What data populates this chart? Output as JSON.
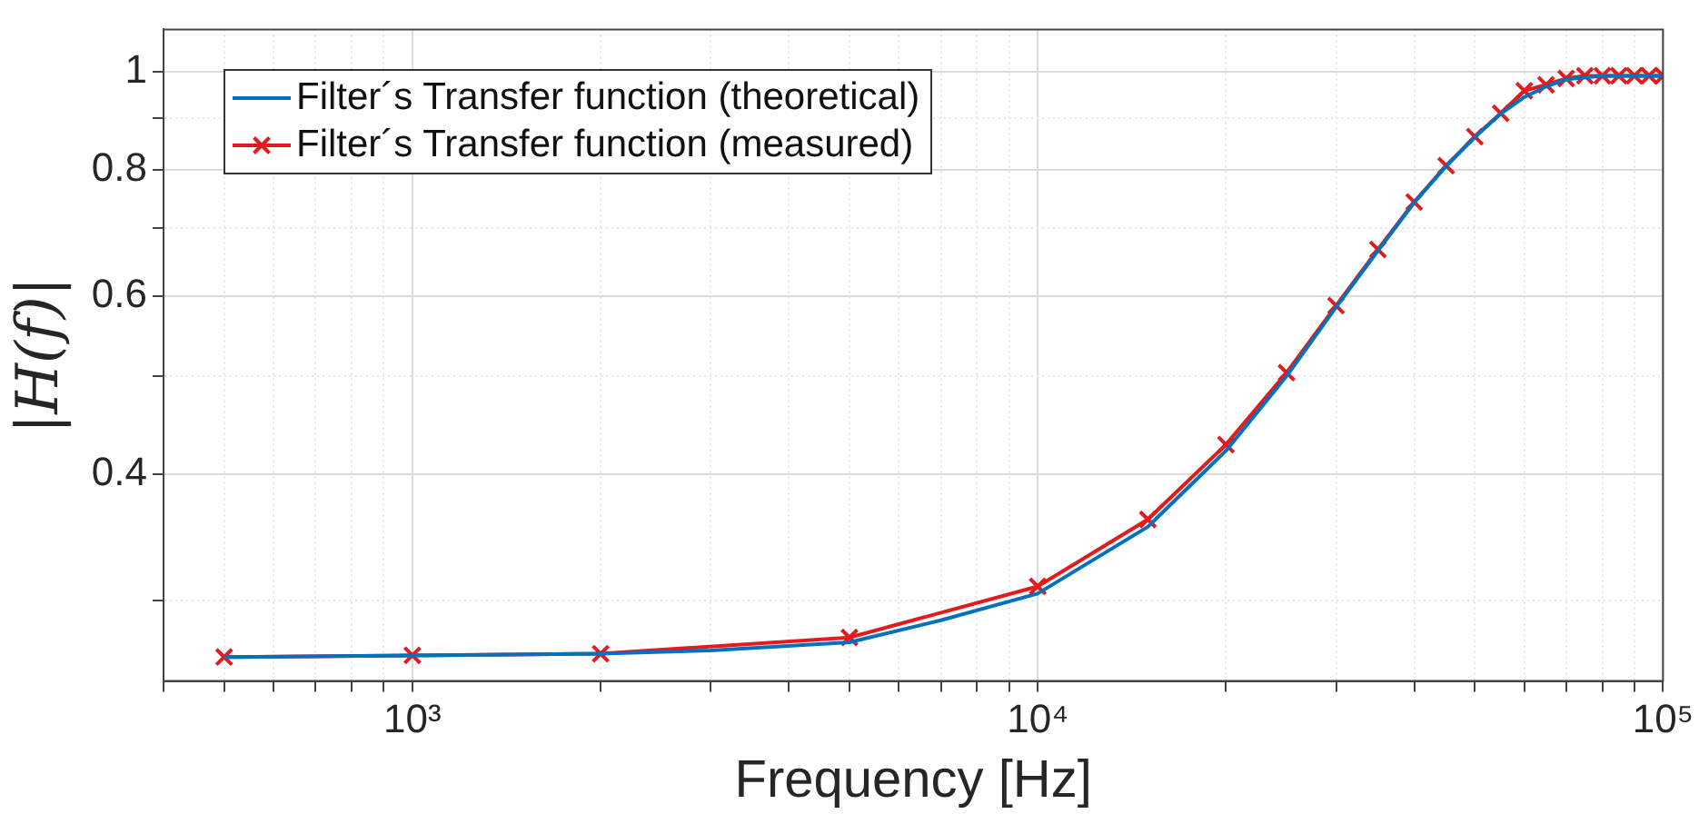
{
  "chart_data": {
    "type": "line",
    "xlabel": "Frequency [Hz]",
    "ylabel": "|H(f)|",
    "log": "xy",
    "grid": true,
    "legend": "top left",
    "xlim": [
      400,
      100000
    ],
    "ylim": [
      0.25,
      1.1
    ],
    "xticks": [
      {
        "value": 400,
        "label": null
      },
      {
        "value": 500,
        "label": null
      },
      {
        "value": 600,
        "label": null
      },
      {
        "value": 700,
        "label": null
      },
      {
        "value": 800,
        "label": null
      },
      {
        "value": 900,
        "label": null
      },
      {
        "value": 1000,
        "label": "10³"
      },
      {
        "value": 2000,
        "label": null
      },
      {
        "value": 3000,
        "label": null
      },
      {
        "value": 4000,
        "label": null
      },
      {
        "value": 5000,
        "label": null
      },
      {
        "value": 6000,
        "label": null
      },
      {
        "value": 7000,
        "label": null
      },
      {
        "value": 8000,
        "label": null
      },
      {
        "value": 9000,
        "label": null
      },
      {
        "value": 10000,
        "label": "10⁴"
      },
      {
        "value": 20000,
        "label": null
      },
      {
        "value": 30000,
        "label": null
      },
      {
        "value": 40000,
        "label": null
      },
      {
        "value": 50000,
        "label": null
      },
      {
        "value": 60000,
        "label": null
      },
      {
        "value": 70000,
        "label": null
      },
      {
        "value": 80000,
        "label": null
      },
      {
        "value": 90000,
        "label": null
      },
      {
        "value": 100000,
        "label": "10⁵"
      }
    ],
    "yticks": [
      {
        "value": 0.3,
        "label": null
      },
      0.4,
      {
        "value": 0.5,
        "label": null
      },
      0.6,
      {
        "value": 0.7,
        "label": null
      },
      0.8,
      {
        "value": 0.9,
        "label": null
      },
      1
    ],
    "series": [
      {
        "name": "Filter´s Transfer function (theoretical)",
        "color": "#0072bd",
        "marker": "none",
        "x": [
          500,
          1000,
          2000,
          3000,
          5000,
          7000,
          10000,
          15000,
          20000,
          25000,
          30000,
          35000,
          40000,
          45000,
          50000,
          55000,
          60000,
          65000,
          70000,
          80000,
          90000,
          100000
        ],
        "values": [
          0.264,
          0.265,
          0.266,
          0.268,
          0.273,
          0.287,
          0.305,
          0.355,
          0.422,
          0.5,
          0.585,
          0.665,
          0.742,
          0.806,
          0.861,
          0.908,
          0.943,
          0.966,
          0.982,
          0.99,
          0.99,
          0.99
        ]
      },
      {
        "name": "Filter´s Transfer function (measured)",
        "color": "#e41a1c",
        "marker": "cross",
        "x": [
          500,
          1000,
          2000,
          5000,
          10000,
          15000,
          20000,
          25000,
          30000,
          35000,
          40000,
          45000,
          50000,
          55000,
          60000,
          65000,
          70000,
          75000,
          80000,
          85000,
          90000,
          95000,
          100000
        ],
        "values": [
          0.264,
          0.265,
          0.266,
          0.276,
          0.31,
          0.361,
          0.428,
          0.504,
          0.587,
          0.667,
          0.743,
          0.807,
          0.862,
          0.909,
          0.957,
          0.97,
          0.984,
          0.99,
          0.99,
          0.99,
          0.99,
          0.99,
          0.99
        ]
      }
    ]
  }
}
